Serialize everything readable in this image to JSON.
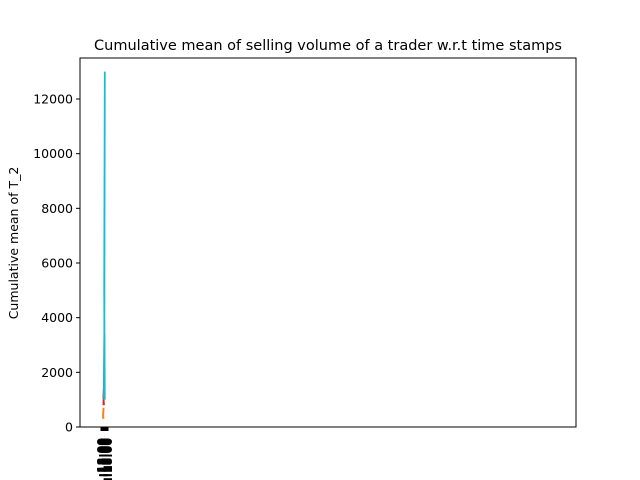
{
  "chart_data": {
    "type": "line",
    "title": "Cumulative mean of selling volume of a trader w.r.t time stamps",
    "xlabel": "",
    "ylabel": "Cumulative mean of T_2",
    "ylim": [
      0,
      13500
    ],
    "yticks": [
      0,
      2000,
      4000,
      6000,
      8000,
      10000,
      12000
    ],
    "xtick_labels": [
      "11:18:00",
      "11:18:00",
      "11:18:00",
      "11:18:00",
      "11:18:00",
      "11:18:00",
      "11:18:00",
      "11:18:00"
    ],
    "grid": false,
    "series": [
      {
        "values": [
          300,
          700,
          450,
          300
        ],
        "color": "#ff7f0e"
      },
      {
        "values": [
          800,
          1550,
          1100,
          800
        ],
        "color": "#d62728"
      },
      {
        "values": [
          1100,
          3400,
          1500,
          1100
        ],
        "color": "#9467bd"
      },
      {
        "values": [
          1000,
          13000,
          5000,
          1000
        ],
        "color": "#17becf"
      }
    ]
  }
}
